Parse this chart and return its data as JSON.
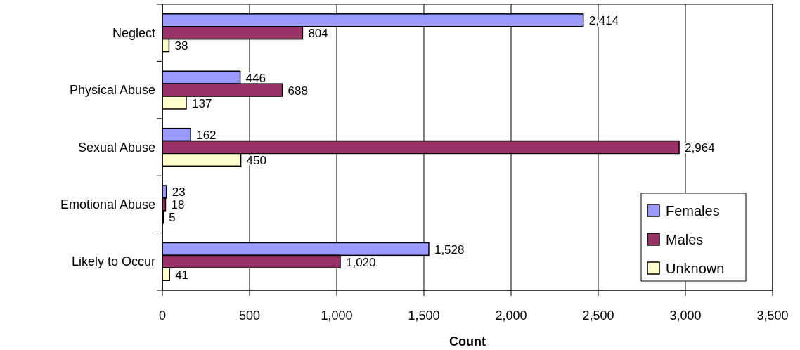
{
  "chart_data": {
    "type": "bar",
    "orientation": "horizontal",
    "xlabel": "Count",
    "categories": [
      "Neglect",
      "Physical Abuse",
      "Sexual Abuse",
      "Emotional Abuse",
      "Likely to Occur"
    ],
    "series": [
      {
        "name": "Females",
        "color": "#9999ff",
        "values": [
          2414,
          446,
          162,
          23,
          1528
        ],
        "value_labels": [
          "2,414",
          "446",
          "162",
          "23",
          "1,528"
        ]
      },
      {
        "name": "Males",
        "color": "#993366",
        "values": [
          804,
          688,
          2964,
          18,
          1020
        ],
        "value_labels": [
          "804",
          "688",
          "2,964",
          "18",
          "1,020"
        ]
      },
      {
        "name": "Unknown",
        "color": "#ffffcc",
        "values": [
          38,
          137,
          450,
          5,
          41
        ],
        "value_labels": [
          "38",
          "137",
          "450",
          "5",
          "41"
        ]
      }
    ],
    "xlim": [
      0,
      3500
    ],
    "xticks": [
      0,
      500,
      {
        "value": 1000,
        "label": "1,000"
      },
      {
        "value": 1500,
        "label": "1,500"
      },
      {
        "value": 2000,
        "label": "2,000"
      },
      {
        "value": 2500,
        "label": "2,500"
      },
      {
        "value": 3000,
        "label": "3,000"
      },
      {
        "value": 3500,
        "label": "3,500"
      }
    ],
    "grid": "x",
    "legend": "bottom right"
  }
}
